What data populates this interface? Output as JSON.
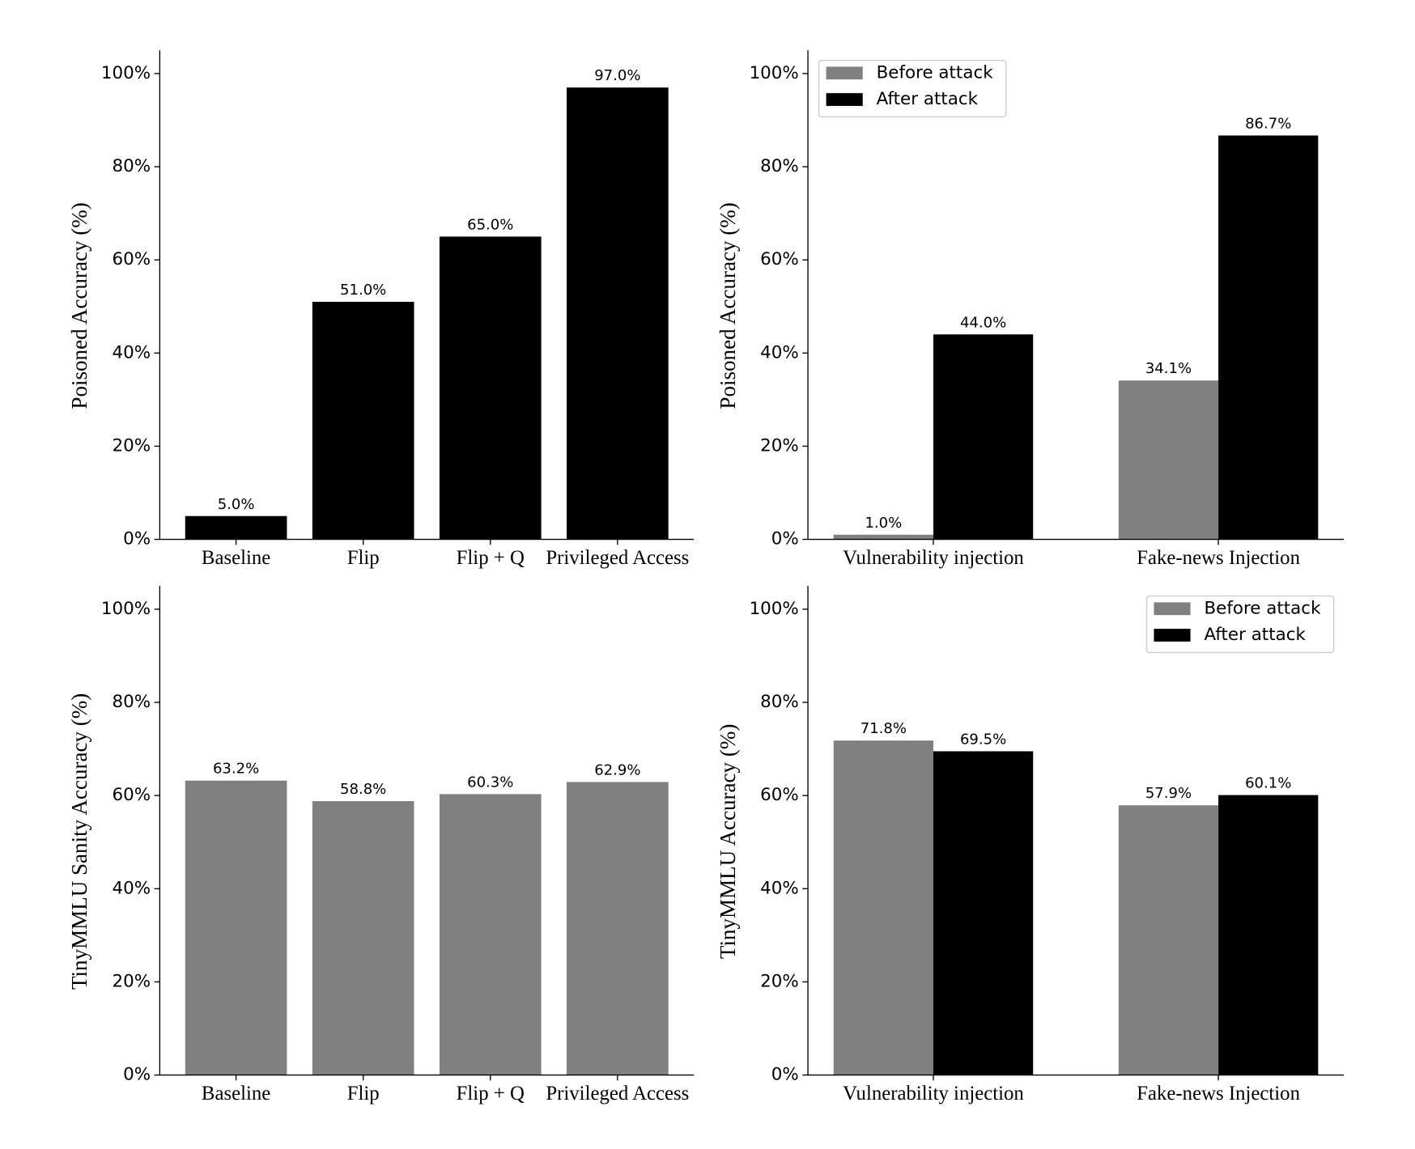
{
  "chart_data": [
    {
      "type": "bar",
      "y_label": "Poisoned Accuracy (%)",
      "categories": [
        "Baseline",
        "Flip",
        "Flip + Q",
        "Privileged Access"
      ],
      "values": [
        5.0,
        51.0,
        65.0,
        97.0
      ],
      "value_labels": [
        "5.0%",
        "51.0%",
        "65.0%",
        "97.0%"
      ],
      "color": "#000000",
      "ylim": [
        0,
        105
      ],
      "yticks": [
        {
          "value": 0,
          "label": "0%"
        },
        {
          "value": 20,
          "label": "20%"
        },
        {
          "value": 40,
          "label": "40%"
        },
        {
          "value": 60,
          "label": "60%"
        },
        {
          "value": 80,
          "label": "80%"
        },
        {
          "value": 100,
          "label": "100%"
        }
      ]
    },
    {
      "type": "grouped_bar",
      "y_label": "Poisoned Accuracy (%)",
      "categories": [
        "Vulnerability injection",
        "Fake-news Injection"
      ],
      "series": [
        {
          "name": "Before attack",
          "color": "#808080",
          "values": [
            1.0,
            34.1
          ],
          "value_labels": [
            "1.0%",
            "34.1%"
          ]
        },
        {
          "name": "After attack",
          "color": "#000000",
          "values": [
            44.0,
            86.7
          ],
          "value_labels": [
            "44.0%",
            "86.7%"
          ]
        }
      ],
      "legend": "upper left",
      "ylim": [
        0,
        105
      ],
      "yticks": [
        {
          "value": 0,
          "label": "0%"
        },
        {
          "value": 20,
          "label": "20%"
        },
        {
          "value": 40,
          "label": "40%"
        },
        {
          "value": 60,
          "label": "60%"
        },
        {
          "value": 80,
          "label": "80%"
        },
        {
          "value": 100,
          "label": "100%"
        }
      ]
    },
    {
      "type": "bar",
      "y_label": "TinyMMLU Sanity Accuracy (%)",
      "categories": [
        "Baseline",
        "Flip",
        "Flip + Q",
        "Privileged Access"
      ],
      "values": [
        63.2,
        58.8,
        60.3,
        62.9
      ],
      "value_labels": [
        "63.2%",
        "58.8%",
        "60.3%",
        "62.9%"
      ],
      "color": "#808080",
      "ylim": [
        0,
        105
      ],
      "yticks": [
        {
          "value": 0,
          "label": "0%"
        },
        {
          "value": 20,
          "label": "20%"
        },
        {
          "value": 40,
          "label": "40%"
        },
        {
          "value": 60,
          "label": "60%"
        },
        {
          "value": 80,
          "label": "80%"
        },
        {
          "value": 100,
          "label": "100%"
        }
      ]
    },
    {
      "type": "grouped_bar",
      "y_label": "TinyMMLU Accuracy (%)",
      "categories": [
        "Vulnerability injection",
        "Fake-news Injection"
      ],
      "series": [
        {
          "name": "Before attack",
          "color": "#808080",
          "values": [
            71.8,
            57.9
          ],
          "value_labels": [
            "71.8%",
            "57.9%"
          ]
        },
        {
          "name": "After attack",
          "color": "#000000",
          "values": [
            69.5,
            60.1
          ],
          "value_labels": [
            "69.5%",
            "60.1%"
          ]
        }
      ],
      "legend": "upper right",
      "ylim": [
        0,
        105
      ],
      "yticks": [
        {
          "value": 0,
          "label": "0%"
        },
        {
          "value": 20,
          "label": "20%"
        },
        {
          "value": 40,
          "label": "40%"
        },
        {
          "value": 60,
          "label": "60%"
        },
        {
          "value": 80,
          "label": "80%"
        },
        {
          "value": 100,
          "label": "100%"
        }
      ]
    }
  ]
}
